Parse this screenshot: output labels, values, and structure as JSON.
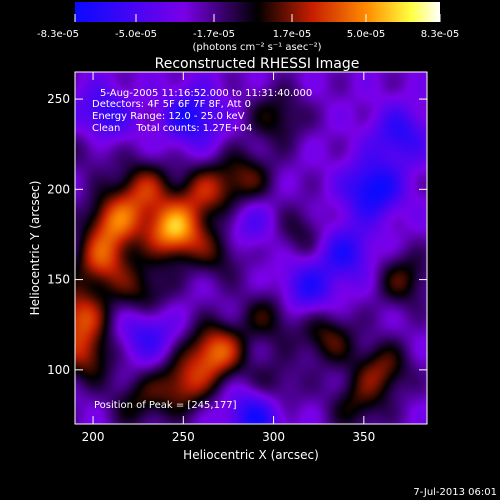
{
  "colorbar": {
    "tick_labels": [
      "-8.3e-05",
      "-5.0e-05",
      "-1.7e-05",
      "1.7e-05",
      "5.0e-05",
      "8.3e-05"
    ],
    "unit_label": "(photons cm⁻² s⁻¹ asec⁻²)",
    "range": [
      -8.3e-05,
      8.3e-05
    ],
    "colormap": [
      "#0a0aff",
      "#7a00e8",
      "#000000",
      "#c81e00",
      "#ff8c00",
      "#ffff40",
      "#ffffff"
    ]
  },
  "chart_data": {
    "type": "heatmap",
    "title": "Reconstructed RHESSI Image",
    "xlabel": "Heliocentric X (arcsec)",
    "ylabel": "Heliocentric Y (arcsec)",
    "xlim": [
      190,
      385
    ],
    "ylim": [
      70,
      265
    ],
    "x_ticks": [
      200,
      250,
      300,
      350
    ],
    "y_ticks": [
      100,
      150,
      200,
      250
    ],
    "grid": false,
    "annotations": [
      "5-Aug-2005 11:16:52.000 to 11:31:40.000",
      "Detectors: 4F 5F 6F 7F 8F, Att 0",
      "Energy Range: 12.0 - 25.0 keV",
      "Clean     Total counts: 1.27E+04"
    ],
    "peak_label": "Position of Peak = [245,177]",
    "peak": [
      245,
      177
    ],
    "blobs": [
      {
        "x": 245,
        "y": 177,
        "amp": 8.3e-05
      },
      {
        "x": 212,
        "y": 182,
        "amp": 6.2e-05
      },
      {
        "x": 205,
        "y": 160,
        "amp": 5.5e-05
      },
      {
        "x": 228,
        "y": 200,
        "amp": 4.8e-05
      },
      {
        "x": 262,
        "y": 198,
        "amp": 4.5e-05
      },
      {
        "x": 284,
        "y": 206,
        "amp": 3.8e-05
      },
      {
        "x": 270,
        "y": 165,
        "amp": 3e-05
      },
      {
        "x": 228,
        "y": 143,
        "amp": 3.5e-05
      },
      {
        "x": 192,
        "y": 130,
        "amp": 5.8e-05
      },
      {
        "x": 196,
        "y": 108,
        "amp": 4.5e-05
      },
      {
        "x": 268,
        "y": 110,
        "amp": 6.8e-05
      },
      {
        "x": 250,
        "y": 92,
        "amp": 5e-05
      },
      {
        "x": 298,
        "y": 130,
        "amp": 3.2e-05
      },
      {
        "x": 330,
        "y": 118,
        "amp": 3.8e-05
      },
      {
        "x": 360,
        "y": 100,
        "amp": 4.2e-05
      },
      {
        "x": 372,
        "y": 150,
        "amp": 3.5e-05
      },
      {
        "x": 346,
        "y": 80,
        "amp": 3e-05
      },
      {
        "x": 302,
        "y": 240,
        "amp": 3.2e-05
      },
      {
        "x": 315,
        "y": 175,
        "amp": 2.5e-05
      },
      {
        "x": 225,
        "y": 82,
        "amp": 3e-05
      },
      {
        "x": 300,
        "y": 90,
        "amp": 2.8e-05
      },
      {
        "x": 198,
        "y": 225,
        "amp": 2e-05
      },
      {
        "x": 355,
        "y": 200,
        "amp": -5.5e-05
      },
      {
        "x": 340,
        "y": 165,
        "amp": -4e-05
      },
      {
        "x": 290,
        "y": 75,
        "amp": -5e-05
      },
      {
        "x": 255,
        "y": 240,
        "amp": -4.5e-05
      },
      {
        "x": 205,
        "y": 240,
        "amp": -4e-05
      },
      {
        "x": 230,
        "y": 120,
        "amp": -3.5e-05
      },
      {
        "x": 318,
        "y": 145,
        "amp": -4e-05
      },
      {
        "x": 370,
        "y": 230,
        "amp": -3.8e-05
      },
      {
        "x": 286,
        "y": 180,
        "amp": -2.5e-05
      }
    ]
  },
  "footer": {
    "date": "7-Jul-2013 06:01"
  }
}
